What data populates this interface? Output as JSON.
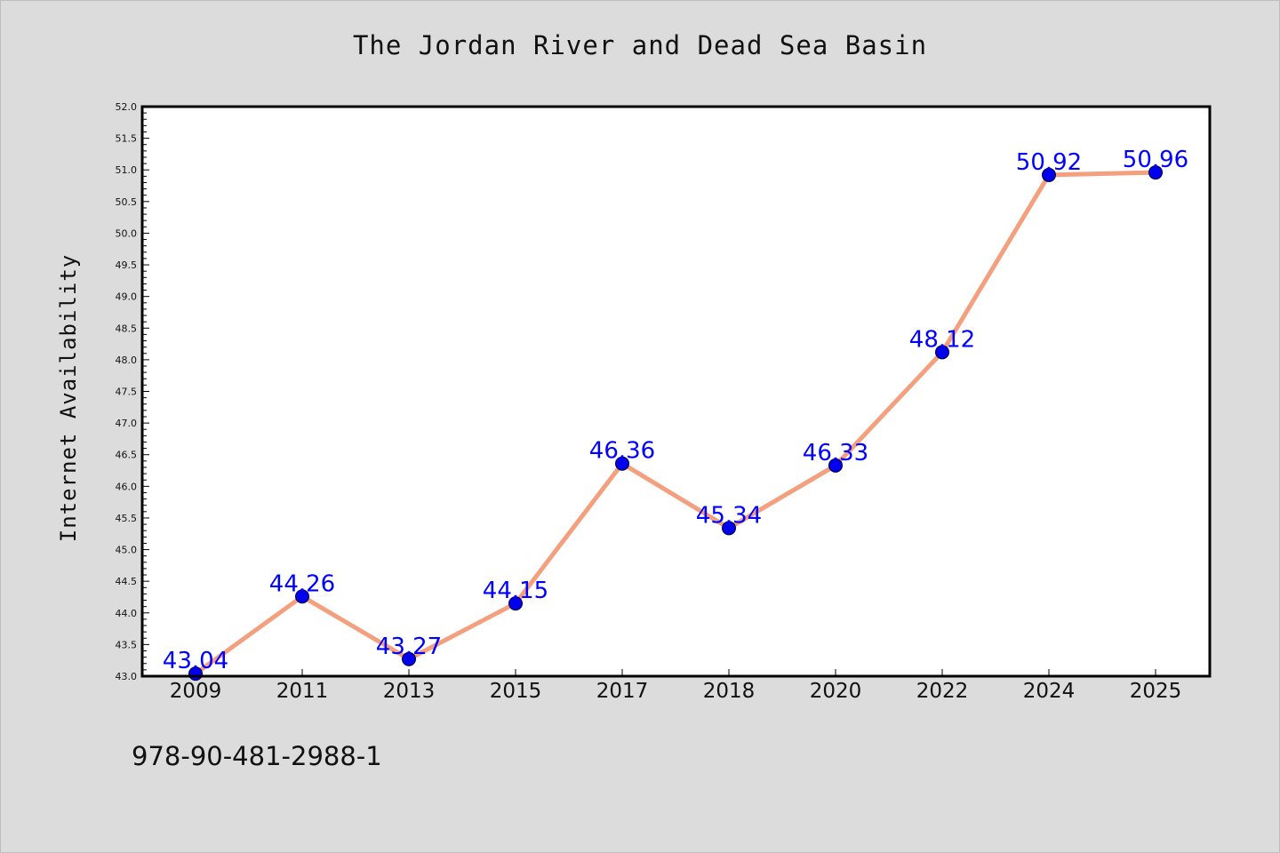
{
  "chart_data": {
    "type": "line",
    "title": "The Jordan River and Dead Sea Basin",
    "xlabel": "",
    "ylabel": "Internet Availability",
    "categories": [
      "2009",
      "2011",
      "2013",
      "2015",
      "2017",
      "2018",
      "2020",
      "2022",
      "2024",
      "2025"
    ],
    "values": [
      43.04,
      44.26,
      43.27,
      44.15,
      46.36,
      45.34,
      46.33,
      48.12,
      50.92,
      50.96
    ],
    "ylim": [
      43.0,
      52.0
    ],
    "y_major_step": 0.5,
    "y_tick_labels": [
      "43.0",
      "43.5",
      "44.0",
      "44.5",
      "45.0",
      "45.5",
      "46.0",
      "46.5",
      "47.0",
      "47.5",
      "48.0",
      "48.5",
      "49.0",
      "49.5",
      "50.0",
      "50.5",
      "51.0",
      "51.5",
      "52.0"
    ],
    "grid": false,
    "line_color": "#f4a07f",
    "marker_color": "#0000ee",
    "label_color": "#0000ff",
    "data_labels": [
      "43.04",
      "44.26",
      "43.27",
      "44.15",
      "46.36",
      "45.34",
      "46.33",
      "48.12",
      "50.92",
      "50.96"
    ]
  },
  "footer": {
    "code": "978-90-481-2988-1"
  },
  "colors": {
    "background": "#dcdcdc",
    "plot_background": "#ffffff",
    "axis": "#000000"
  }
}
